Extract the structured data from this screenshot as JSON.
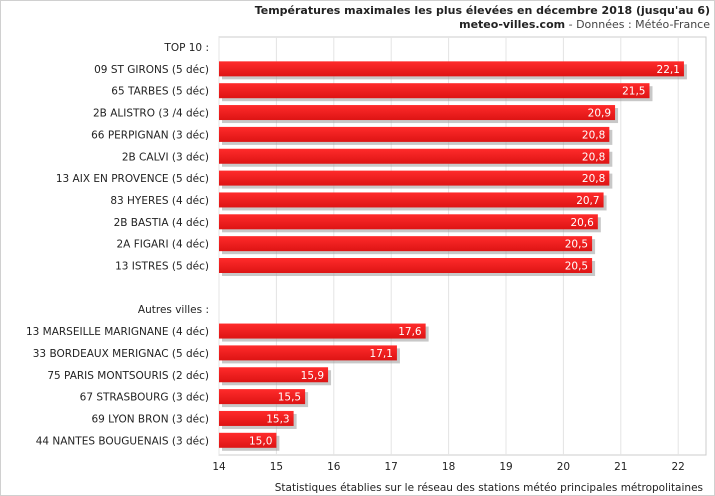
{
  "chart_data": {
    "type": "bar",
    "orientation": "horizontal",
    "title": "Températures maximales les plus élevées en décembre 2018 (jusqu'au 6)",
    "subtitle_brand": "meteo-villes.com",
    "subtitle_rest": " - Données : Météo-France",
    "footer": "Statistiques établies sur le réseau des stations météo principales métropolitaines",
    "xlim": [
      14,
      22.5
    ],
    "xticks": [
      14,
      15,
      16,
      17,
      18,
      19,
      20,
      21,
      22
    ],
    "grid": true,
    "bar_color": "#ee1c1c",
    "groups": [
      {
        "header": "TOP 10 :",
        "categories": [
          "09 ST GIRONS (5 déc)",
          "65 TARBES (5 déc)",
          "2B ALISTRO (3 /4 déc)",
          "66 PERPIGNAN (3 déc)",
          "2B CALVI (3 déc)",
          "13 AIX EN PROVENCE (5 déc)",
          "83 HYERES (4 déc)",
          "2B BASTIA (4 déc)",
          "2A FIGARI (4 déc)",
          "13 ISTRES (5 déc)"
        ],
        "values": [
          22.1,
          21.5,
          20.9,
          20.8,
          20.8,
          20.8,
          20.7,
          20.6,
          20.5,
          20.5
        ],
        "value_labels": [
          "22,1",
          "21,5",
          "20,9",
          "20,8",
          "20,8",
          "20,8",
          "20,7",
          "20,6",
          "20,5",
          "20,5"
        ]
      },
      {
        "header": "Autres villes :",
        "categories": [
          "13 MARSEILLE MARIGNANE (4 déc)",
          "33 BORDEAUX MERIGNAC (5 déc)",
          "75 PARIS MONTSOURIS (2 déc)",
          "67 STRASBOURG (3 déc)",
          "69 LYON BRON (3 déc)",
          "44 NANTES BOUGUENAIS (3 déc)"
        ],
        "values": [
          17.6,
          17.1,
          15.9,
          15.5,
          15.3,
          15.0
        ],
        "value_labels": [
          "17,6",
          "17,1",
          "15,9",
          "15,5",
          "15,3",
          "15,0"
        ]
      }
    ]
  }
}
